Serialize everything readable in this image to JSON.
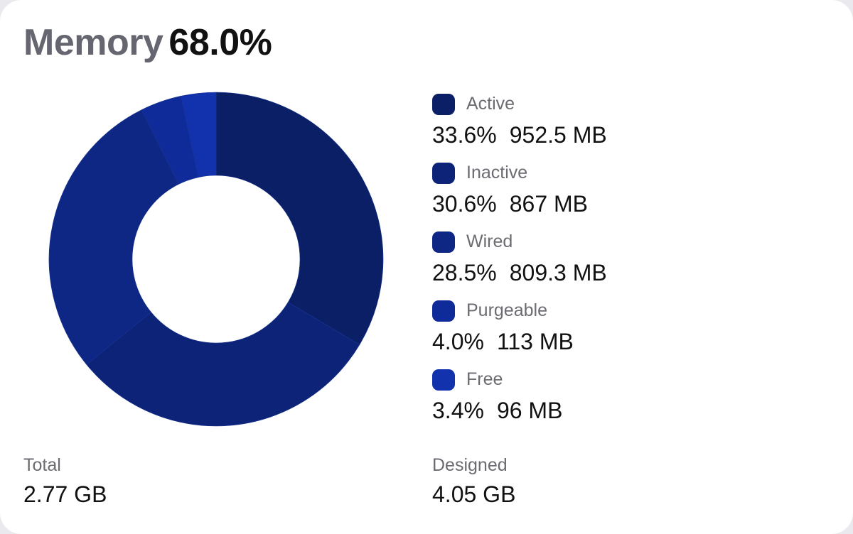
{
  "header": {
    "label": "Memory",
    "value": "68.0%"
  },
  "chart_data": {
    "type": "pie",
    "slices": [
      {
        "name": "Active",
        "percent_label": "33.6%",
        "size_label": "952.5 MB",
        "value": 952.5,
        "color": "#0a1f66"
      },
      {
        "name": "Inactive",
        "percent_label": "30.6%",
        "size_label": "867 MB",
        "value": 867,
        "color": "#0c2378"
      },
      {
        "name": "Wired",
        "percent_label": "28.5%",
        "size_label": "809.3 MB",
        "value": 809.3,
        "color": "#0e2785"
      },
      {
        "name": "Purgeable",
        "percent_label": "4.0%",
        "size_label": "113 MB",
        "value": 113,
        "color": "#0f2b99"
      },
      {
        "name": "Free",
        "percent_label": "3.4%",
        "size_label": "96 MB",
        "value": 96,
        "color": "#1232ad"
      }
    ]
  },
  "stats": {
    "total": {
      "label": "Total",
      "value": "2.77 GB"
    },
    "designed": {
      "label": "Designed",
      "value": "4.05 GB"
    }
  }
}
